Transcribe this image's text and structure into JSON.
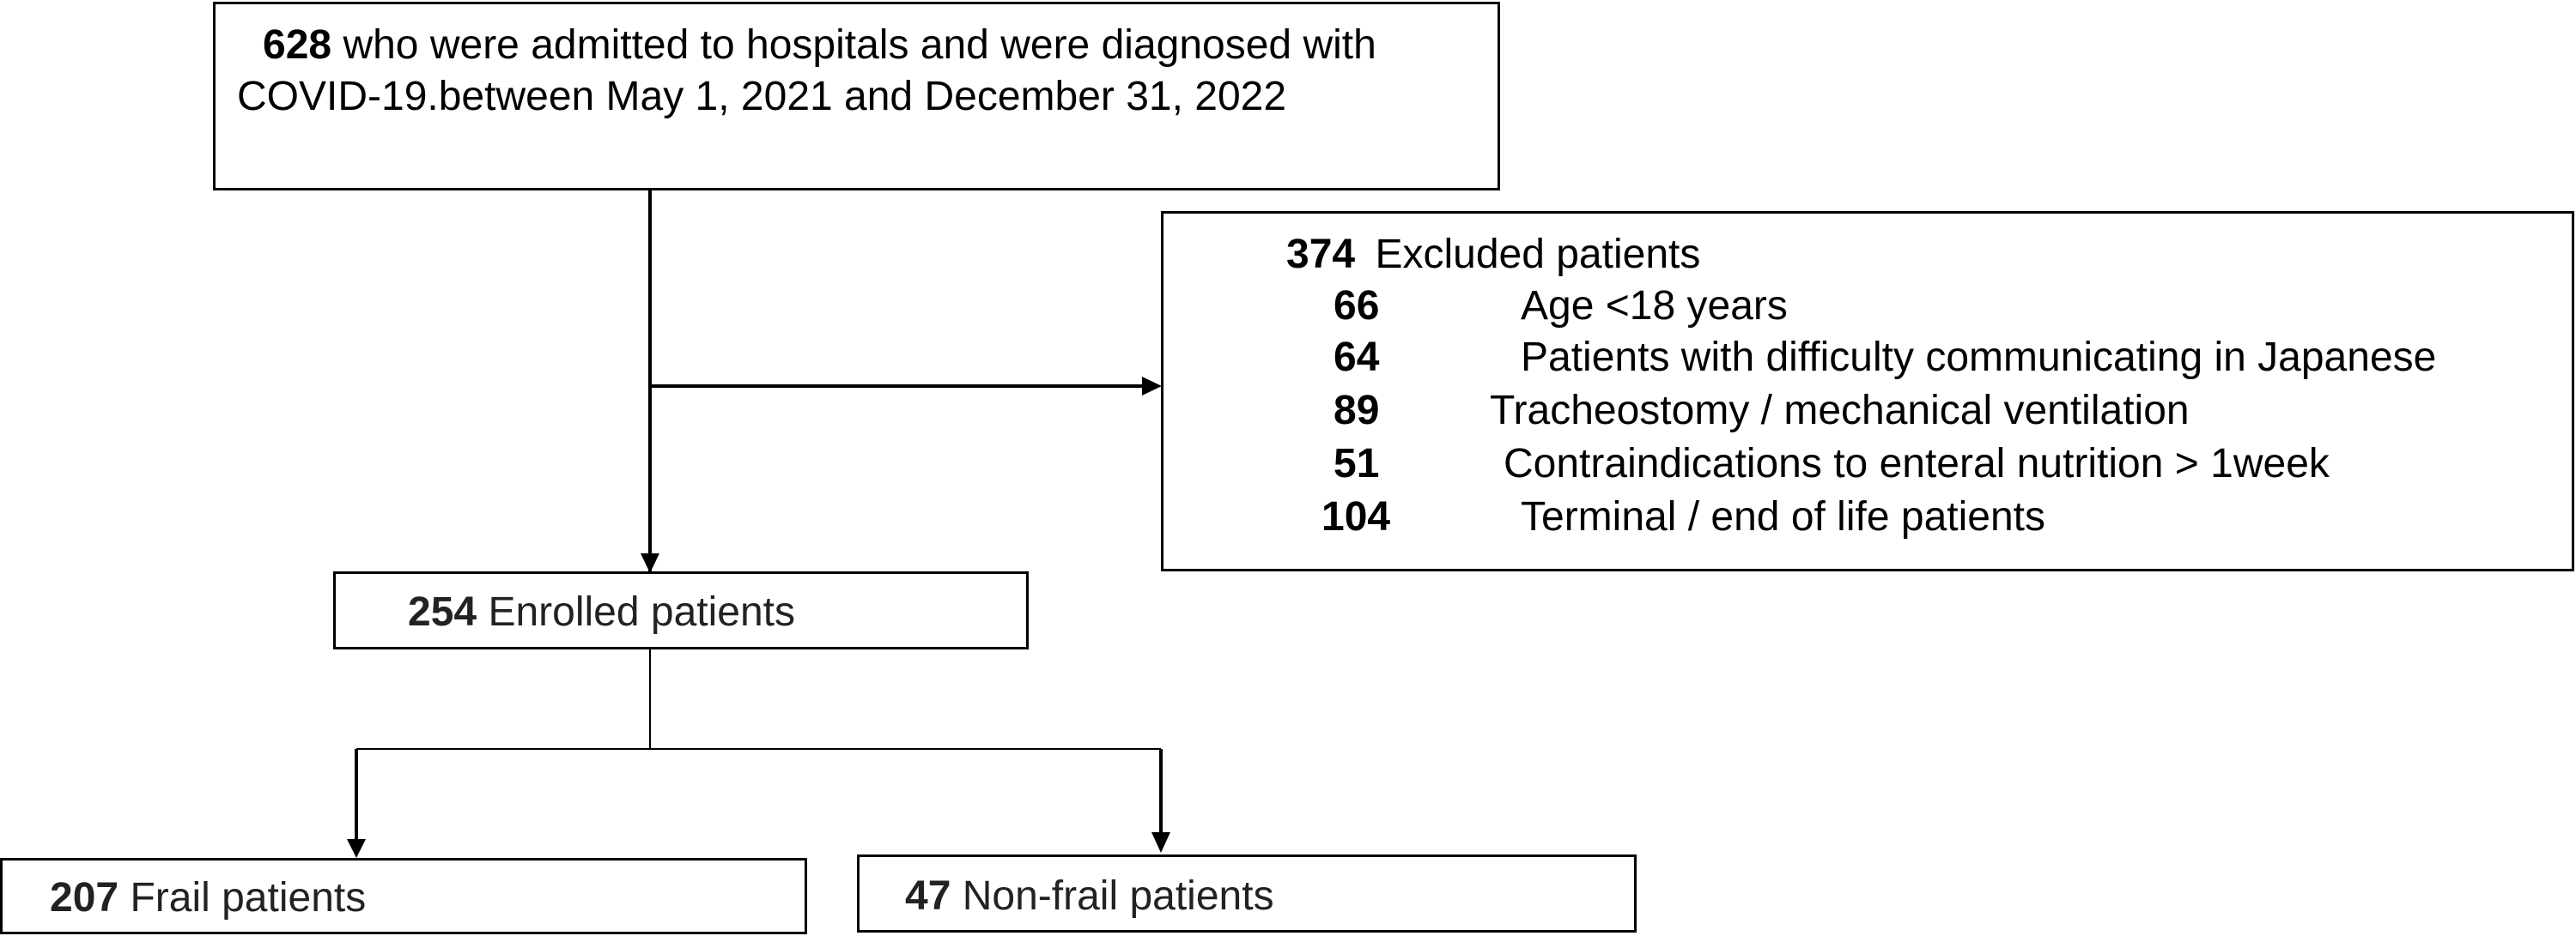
{
  "admitted": {
    "count": "628",
    "line1": "who were admitted to hospitals and were diagnosed with",
    "line2": "COVID-19.between May 1, 2021 and December 31, 2022"
  },
  "excluded": {
    "count": "374",
    "label": "Excluded patients",
    "reasons": [
      {
        "count": "66",
        "label": "Age <18 years"
      },
      {
        "count": "64",
        "label": "Patients with difficulty communicating in Japanese"
      },
      {
        "count": "89",
        "label": "Tracheostomy / mechanical ventilation"
      },
      {
        "count": "51",
        "label": "Contraindications to enteral nutrition > 1week"
      },
      {
        "count": "104",
        "label": "Terminal / end of life patients"
      }
    ]
  },
  "enrolled": {
    "count": "254",
    "label": "Enrolled patients"
  },
  "frail": {
    "count": "207",
    "label": "Frail patients"
  },
  "nonfrail": {
    "count": "47",
    "label": "Non-frail patients"
  }
}
